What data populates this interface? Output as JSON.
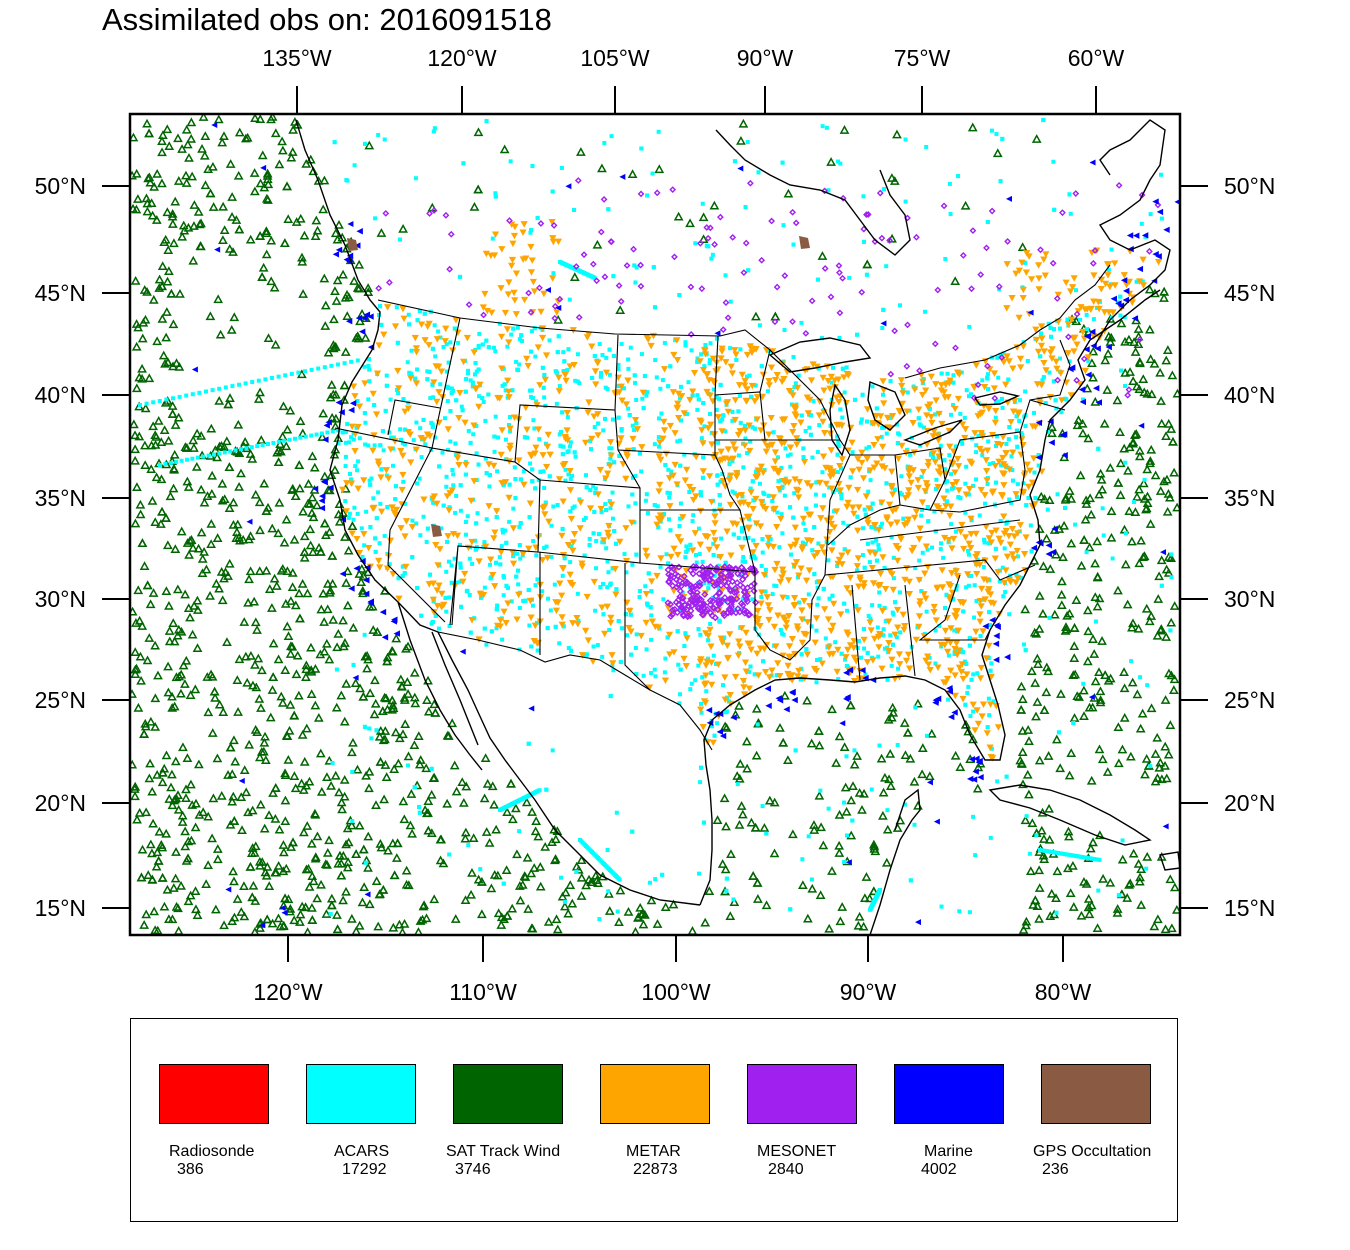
{
  "title": "Assimilated obs on: 2016091518",
  "map": {
    "top_lon_labels": [
      "135°W",
      "120°W",
      "105°W",
      "90°W",
      "75°W",
      "60°W"
    ],
    "bottom_lon_labels": [
      "120°W",
      "110°W",
      "100°W",
      "90°W",
      "80°W"
    ],
    "lat_labels": [
      "50°N",
      "45°N",
      "40°N",
      "35°N",
      "30°N",
      "25°N",
      "20°N",
      "15°N"
    ]
  },
  "legend": {
    "items": [
      {
        "name": "Radiosonde",
        "count": "386",
        "color": "#ff0000"
      },
      {
        "name": "ACARS",
        "count": "17292",
        "color": "#00ffff"
      },
      {
        "name": "SAT Track Wind",
        "count": "3746",
        "color": "#006400"
      },
      {
        "name": "METAR",
        "count": "22873",
        "color": "#ffa500"
      },
      {
        "name": "MESONET",
        "count": "2840",
        "color": "#a020f0"
      },
      {
        "name": "Marine",
        "count": "4002",
        "color": "#0000ff"
      },
      {
        "name": "GPS Occultation",
        "count": "236",
        "color": "#8b5a42"
      }
    ]
  }
}
